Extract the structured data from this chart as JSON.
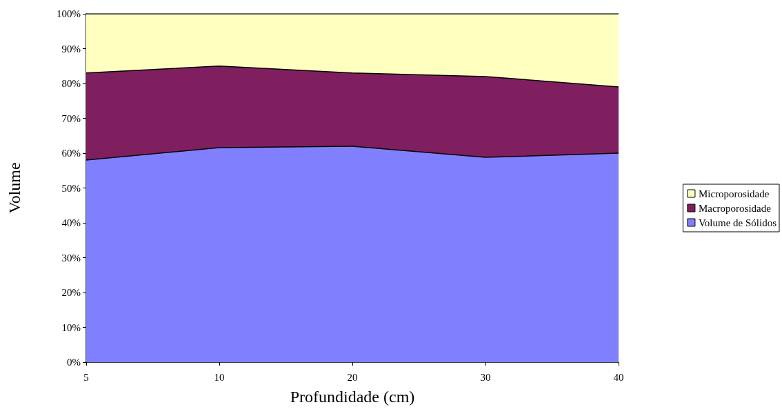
{
  "chart_data": {
    "type": "area",
    "stacked": true,
    "xlabel": "Profundidade (cm)",
    "ylabel": "Volume",
    "categories": [
      "5",
      "10",
      "20",
      "30",
      "40"
    ],
    "series": [
      {
        "name": "Volume de Sólidos",
        "color": "#8080ff",
        "values": [
          58,
          61.6,
          62,
          58.8,
          60
        ]
      },
      {
        "name": "Macroporosidade",
        "color": "#7f1f5f",
        "values": [
          25,
          23.4,
          21,
          23.2,
          19
        ]
      },
      {
        "name": "Microporosidade",
        "color": "#ffffc0",
        "values": [
          17,
          15,
          17,
          18,
          21
        ]
      }
    ],
    "ylim": [
      0,
      100
    ],
    "yticks": [
      {
        "value": 0,
        "label": "0%"
      },
      {
        "value": 10,
        "label": "10%"
      },
      {
        "value": 20,
        "label": "20%"
      },
      {
        "value": 30,
        "label": "30%"
      },
      {
        "value": 40,
        "label": "40%"
      },
      {
        "value": 50,
        "label": "50%"
      },
      {
        "value": 60,
        "label": "60%"
      },
      {
        "value": 70,
        "label": "70%"
      },
      {
        "value": 80,
        "label": "80%"
      },
      {
        "value": 90,
        "label": "90%"
      },
      {
        "value": 100,
        "label": "100%"
      }
    ],
    "grid": false,
    "legend": "right"
  }
}
